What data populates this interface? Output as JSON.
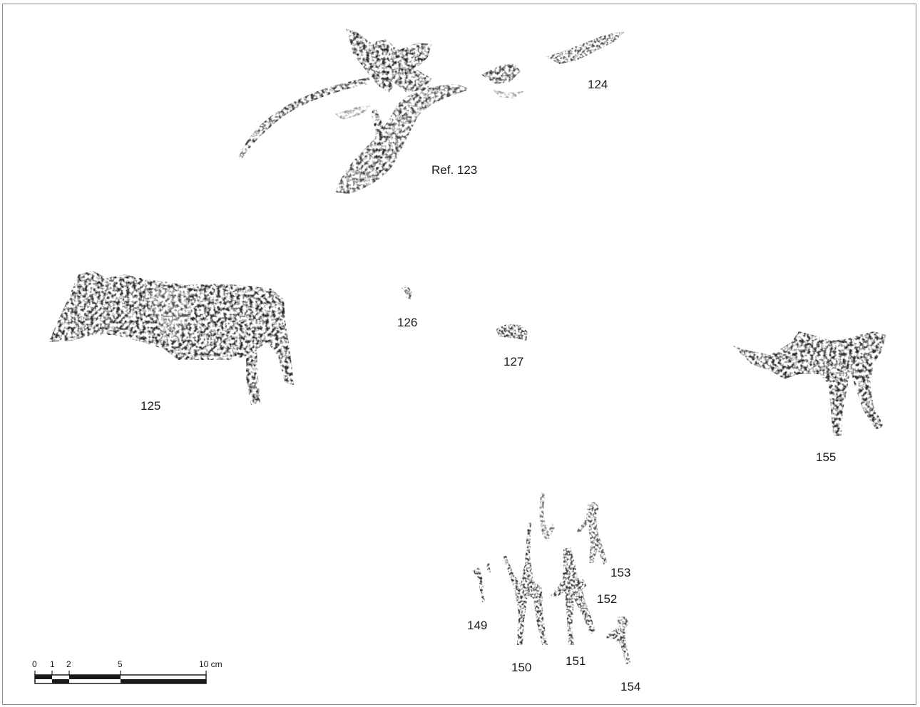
{
  "figure_labels": {
    "ref123": "Ref. 123",
    "f124": "124",
    "f125": "125",
    "f126": "126",
    "f127": "127",
    "f149": "149",
    "f150": "150",
    "f151": "151",
    "f152": "152",
    "f153": "153",
    "f154": "154",
    "f155": "155"
  },
  "scale_bar": {
    "tick_0": "0",
    "tick_1": "1",
    "tick_2": "2",
    "tick_5": "5",
    "tick_10": "10 cm"
  },
  "colors": {
    "pigment_dark": "#2b2b2b",
    "pigment_mid": "#555555",
    "pigment_light": "#9a9a9a",
    "frame": "#8a8a8a"
  }
}
